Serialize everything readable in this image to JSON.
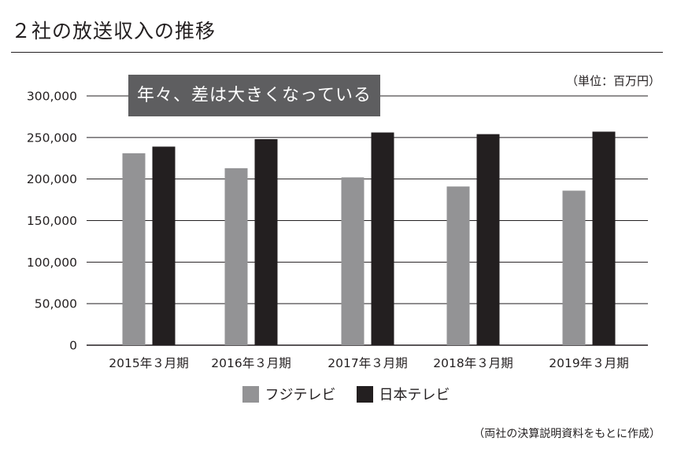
{
  "header": {
    "title": "２社の放送収入の推移"
  },
  "chart_data": {
    "type": "bar",
    "title": "２社の放送収入の推移",
    "unit_label": "（単位：百万円）",
    "annotation": "年々、差は大きくなっている",
    "categories": [
      "2015年３月期",
      "2016年３月期",
      "2017年３月期",
      "2018年３月期",
      "2019年３月期"
    ],
    "series": [
      {
        "name": "フジテレビ",
        "color": "#939395",
        "values": [
          231000,
          213000,
          202000,
          191000,
          186000
        ]
      },
      {
        "name": "日本テレビ",
        "color": "#231f20",
        "values": [
          239000,
          248000,
          256000,
          254000,
          257000
        ]
      }
    ],
    "ylim": [
      0,
      300000
    ],
    "yticks": [
      0,
      50000,
      100000,
      150000,
      200000,
      250000,
      300000
    ],
    "ytick_labels": [
      "0",
      "50,000",
      "100,000",
      "150,000",
      "200,000",
      "250,000",
      "300,000"
    ],
    "grid": true,
    "legend_position": "bottom-center",
    "source": "（両社の決算説明資料をもとに作成）"
  }
}
